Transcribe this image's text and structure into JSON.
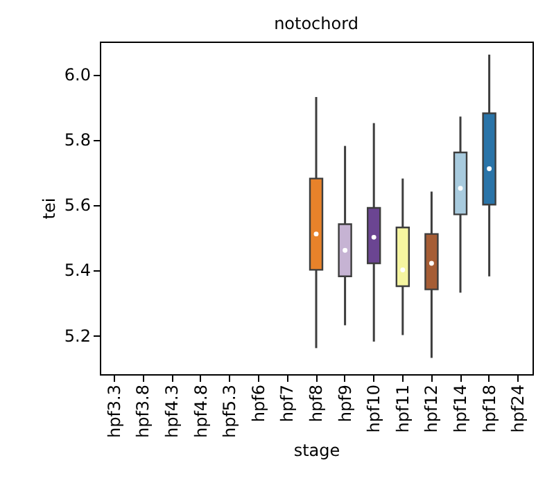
{
  "chart_data": {
    "type": "box",
    "title": "notochord",
    "xlabel": "stage",
    "ylabel": "tei",
    "categories": [
      "hpf3.3",
      "hpf3.8",
      "hpf4.3",
      "hpf4.8",
      "hpf5.3",
      "hpf6",
      "hpf7",
      "hpf8",
      "hpf9",
      "hpf10",
      "hpf11",
      "hpf12",
      "hpf14",
      "hpf18",
      "hpf24"
    ],
    "boxes": [
      null,
      null,
      null,
      null,
      null,
      null,
      null,
      {
        "low": 5.16,
        "q1": 5.4,
        "median": 5.51,
        "q3": 5.68,
        "high": 5.93
      },
      {
        "low": 5.23,
        "q1": 5.38,
        "median": 5.46,
        "q3": 5.54,
        "high": 5.78
      },
      {
        "low": 5.18,
        "q1": 5.42,
        "median": 5.5,
        "q3": 5.59,
        "high": 5.85
      },
      {
        "low": 5.2,
        "q1": 5.35,
        "median": 5.4,
        "q3": 5.53,
        "high": 5.68
      },
      {
        "low": 5.13,
        "q1": 5.34,
        "median": 5.42,
        "q3": 5.51,
        "high": 5.64
      },
      {
        "low": 5.33,
        "q1": 5.57,
        "median": 5.65,
        "q3": 5.76,
        "high": 5.87
      },
      {
        "low": 5.38,
        "q1": 5.6,
        "median": 5.71,
        "q3": 5.88,
        "high": 6.06
      },
      null
    ],
    "colors": [
      null,
      null,
      null,
      null,
      null,
      null,
      null,
      "#e8822a",
      "#c6b3d3",
      "#6b4592",
      "#f5f5a0",
      "#a65d35",
      "#a8cbde",
      "#2a74a8",
      null
    ],
    "ylim": [
      5.08,
      6.1
    ],
    "yticks": [
      5.2,
      5.4,
      5.6,
      5.8,
      {
        "value": 6,
        "label": "6.0"
      }
    ]
  }
}
